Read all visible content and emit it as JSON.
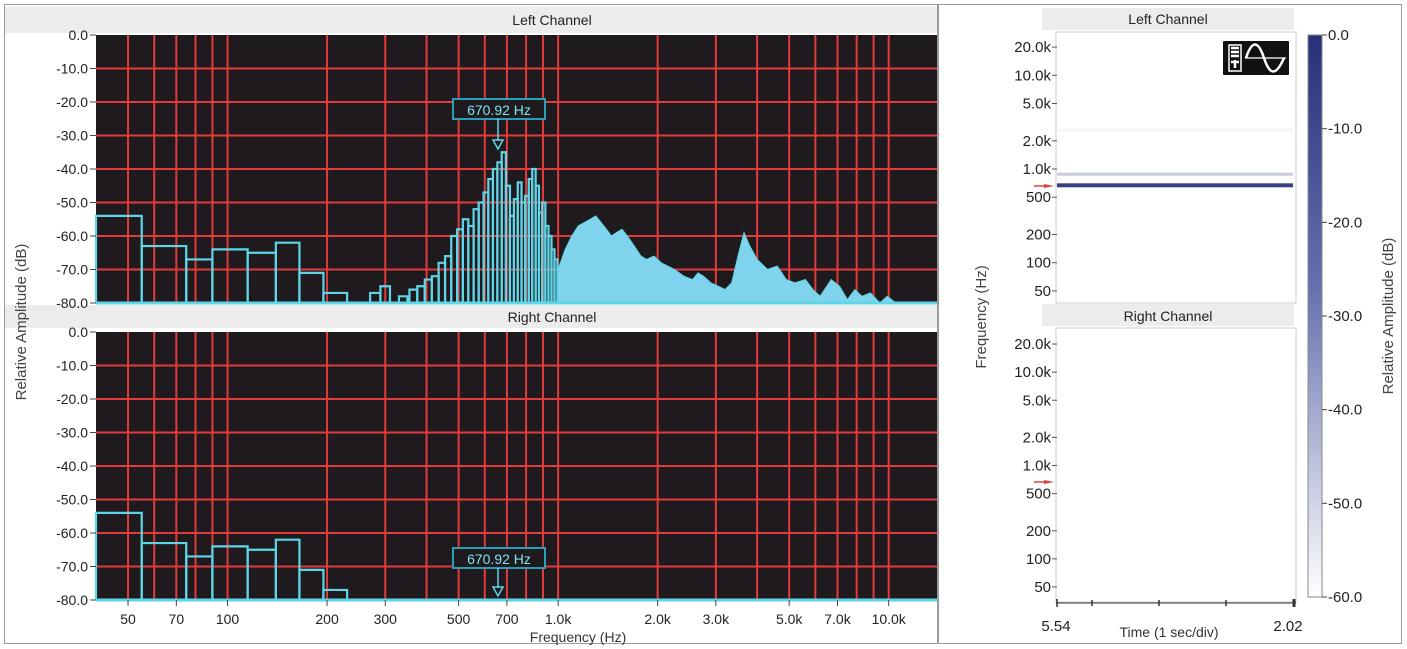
{
  "spectrum": {
    "left_title": "Left Channel",
    "right_title": "Right Channel",
    "y_axis_label": "Relative Amplitude (dB)",
    "x_axis_label": "Frequency (Hz)",
    "y_ticks": [
      "0.0",
      "-10.0",
      "-20.0",
      "-30.0",
      "-40.0",
      "-50.0",
      "-60.0",
      "-70.0",
      "-80.0"
    ],
    "x_ticks": [
      "50",
      "70",
      "100",
      "200",
      "300",
      "500",
      "700",
      "1.0k",
      "2.0k",
      "3.0k",
      "5.0k",
      "7.0k",
      "10.0k"
    ],
    "left_marker_label": "670.92 Hz",
    "right_marker_label": "670.92 Hz",
    "colors": {
      "plot_bg": "#1e1a1d",
      "grid": "#e23b3b",
      "bar_outline": "#5fd6e8",
      "fill": "#7fd3ec",
      "marker": "#2a9fb8"
    }
  },
  "spectrogram": {
    "left_title": "Left Channel",
    "right_title": "Right Channel",
    "y_axis_label": "Frequency (Hz)",
    "x_axis_label": "Time (1 sec/div)",
    "freq_ticks": [
      "20.0k",
      "10.0k",
      "5.0k",
      "2.0k",
      "1.0k",
      "500",
      "200",
      "100",
      "50"
    ],
    "time_start": "5.54",
    "time_end": "2.02",
    "colorbar_label": "Relative Amplitude (dB)",
    "colorbar_ticks": [
      "0.0",
      "-10.0",
      "-20.0",
      "-30.0",
      "-40.0",
      "-50.0",
      "-60.0"
    ],
    "mode_icon": "spectrum-sine-mode-icon"
  },
  "chart_data": [
    {
      "type": "bar",
      "title": "Left Channel",
      "xlabel": "Frequency (Hz)",
      "ylabel": "Relative Amplitude (dB)",
      "x_scale": "log",
      "xlim": [
        40,
        14000
      ],
      "ylim": [
        -80,
        0
      ],
      "grid": true,
      "marker_hz": 670.92,
      "bands": [
        {
          "f1": 40,
          "f2": 55,
          "db": -54
        },
        {
          "f1": 55,
          "f2": 75,
          "db": -63
        },
        {
          "f1": 75,
          "f2": 90,
          "db": -67
        },
        {
          "f1": 90,
          "f2": 115,
          "db": -64
        },
        {
          "f1": 115,
          "f2": 140,
          "db": -65
        },
        {
          "f1": 140,
          "f2": 165,
          "db": -62
        },
        {
          "f1": 165,
          "f2": 195,
          "db": -71
        },
        {
          "f1": 195,
          "f2": 230,
          "db": -77
        },
        {
          "f1": 270,
          "f2": 290,
          "db": -77
        },
        {
          "f1": 290,
          "f2": 310,
          "db": -75
        },
        {
          "f1": 330,
          "f2": 350,
          "db": -78
        },
        {
          "f1": 355,
          "f2": 375,
          "db": -76
        },
        {
          "f1": 375,
          "f2": 395,
          "db": -75
        },
        {
          "f1": 395,
          "f2": 415,
          "db": -73
        },
        {
          "f1": 415,
          "f2": 435,
          "db": -72
        },
        {
          "f1": 435,
          "f2": 455,
          "db": -68
        },
        {
          "f1": 455,
          "f2": 475,
          "db": -66
        },
        {
          "f1": 475,
          "f2": 495,
          "db": -60
        },
        {
          "f1": 495,
          "f2": 515,
          "db": -58
        },
        {
          "f1": 515,
          "f2": 535,
          "db": -55
        },
        {
          "f1": 535,
          "f2": 555,
          "db": -57
        },
        {
          "f1": 555,
          "f2": 575,
          "db": -52
        },
        {
          "f1": 575,
          "f2": 595,
          "db": -50
        },
        {
          "f1": 595,
          "f2": 615,
          "db": -47
        },
        {
          "f1": 615,
          "f2": 635,
          "db": -43
        },
        {
          "f1": 635,
          "f2": 655,
          "db": -40
        },
        {
          "f1": 655,
          "f2": 675,
          "db": -38
        },
        {
          "f1": 675,
          "f2": 695,
          "db": -35
        },
        {
          "f1": 695,
          "f2": 715,
          "db": -45
        },
        {
          "f1": 715,
          "f2": 735,
          "db": -54
        },
        {
          "f1": 735,
          "f2": 755,
          "db": -49
        },
        {
          "f1": 755,
          "f2": 775,
          "db": -44
        },
        {
          "f1": 775,
          "f2": 795,
          "db": -50
        },
        {
          "f1": 795,
          "f2": 815,
          "db": -48
        },
        {
          "f1": 815,
          "f2": 835,
          "db": -43
        },
        {
          "f1": 835,
          "f2": 855,
          "db": -40
        },
        {
          "f1": 855,
          "f2": 875,
          "db": -45
        },
        {
          "f1": 875,
          "f2": 895,
          "db": -53
        },
        {
          "f1": 895,
          "f2": 915,
          "db": -50
        },
        {
          "f1": 915,
          "f2": 935,
          "db": -57
        },
        {
          "f1": 935,
          "f2": 955,
          "db": -60
        },
        {
          "f1": 955,
          "f2": 975,
          "db": -64
        },
        {
          "f1": 975,
          "f2": 995,
          "db": -67
        }
      ],
      "fill_curve": [
        [
          1000,
          -70
        ],
        [
          1050,
          -64
        ],
        [
          1100,
          -60
        ],
        [
          1150,
          -57
        ],
        [
          1200,
          -56
        ],
        [
          1250,
          -55
        ],
        [
          1300,
          -54
        ],
        [
          1350,
          -56
        ],
        [
          1400,
          -58
        ],
        [
          1450,
          -60
        ],
        [
          1500,
          -59
        ],
        [
          1560,
          -58
        ],
        [
          1620,
          -60
        ],
        [
          1700,
          -63
        ],
        [
          1780,
          -66
        ],
        [
          1850,
          -67
        ],
        [
          1950,
          -66
        ],
        [
          2050,
          -68
        ],
        [
          2150,
          -69
        ],
        [
          2250,
          -70
        ],
        [
          2400,
          -72
        ],
        [
          2550,
          -73
        ],
        [
          2650,
          -71
        ],
        [
          2750,
          -72
        ],
        [
          2900,
          -74
        ],
        [
          3050,
          -75
        ],
        [
          3200,
          -76
        ],
        [
          3350,
          -74
        ],
        [
          3500,
          -66
        ],
        [
          3650,
          -59
        ],
        [
          3800,
          -63
        ],
        [
          4000,
          -67
        ],
        [
          4300,
          -70
        ],
        [
          4600,
          -69
        ],
        [
          4900,
          -73
        ],
        [
          5200,
          -74
        ],
        [
          5600,
          -73
        ],
        [
          5900,
          -76
        ],
        [
          6200,
          -78
        ],
        [
          6700,
          -73
        ],
        [
          7100,
          -75
        ],
        [
          7500,
          -79
        ],
        [
          7900,
          -76
        ],
        [
          8300,
          -78
        ],
        [
          8800,
          -77
        ],
        [
          9400,
          -80
        ],
        [
          9900,
          -78
        ],
        [
          10500,
          -80
        ]
      ]
    },
    {
      "type": "bar",
      "title": "Right Channel",
      "xlabel": "Frequency (Hz)",
      "ylabel": "Relative Amplitude (dB)",
      "x_scale": "log",
      "xlim": [
        40,
        14000
      ],
      "ylim": [
        -80,
        0
      ],
      "grid": true,
      "marker_hz": 670.92,
      "bands": [
        {
          "f1": 40,
          "f2": 55,
          "db": -54
        },
        {
          "f1": 55,
          "f2": 75,
          "db": -63
        },
        {
          "f1": 75,
          "f2": 90,
          "db": -67
        },
        {
          "f1": 90,
          "f2": 115,
          "db": -64
        },
        {
          "f1": 115,
          "f2": 140,
          "db": -65
        },
        {
          "f1": 140,
          "f2": 165,
          "db": -62
        },
        {
          "f1": 165,
          "f2": 195,
          "db": -71
        },
        {
          "f1": 195,
          "f2": 230,
          "db": -77
        }
      ],
      "fill_curve": []
    },
    {
      "type": "heatmap",
      "title": "Left Channel",
      "ylabel": "Frequency (Hz)",
      "xlabel": "Time (1 sec/div)",
      "y_scale": "log",
      "ylim": [
        40,
        25000
      ],
      "colorbar_range_db": [
        -60,
        0
      ],
      "bands": [
        {
          "freq_hz": 670,
          "db": -5
        },
        {
          "freq_hz": 880,
          "db": -45
        },
        {
          "freq_hz": 2600,
          "db": -57
        }
      ]
    },
    {
      "type": "heatmap",
      "title": "Right Channel",
      "ylabel": "Frequency (Hz)",
      "xlabel": "Time (1 sec/div)",
      "y_scale": "log",
      "ylim": [
        40,
        25000
      ],
      "colorbar_range_db": [
        -60,
        0
      ],
      "bands": []
    }
  ]
}
